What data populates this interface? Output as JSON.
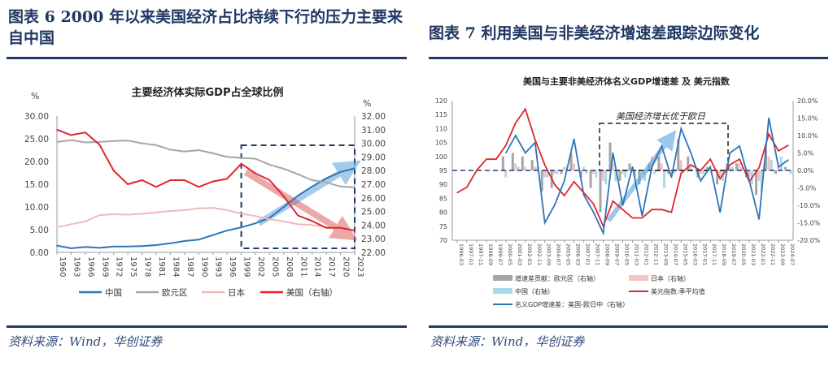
{
  "left": {
    "caption": "图表 6   2000 年以来美国经济占比持续下行的压力主要来自中国",
    "source": "资料来源：Wind，华创证券"
  },
  "right": {
    "caption": "图表 7   利用美国与非美经济增速差跟踪边际变化",
    "source": "资料来源：Wind，华创证券"
  },
  "chart_data": [
    {
      "type": "line",
      "title": "主要经济体实际GDP占全球比例",
      "ylabel": "%",
      "y2label": "%",
      "ylim": [
        0,
        30
      ],
      "y2lim": [
        22,
        32
      ],
      "yticks": [
        "0.00",
        "5.00",
        "10.00",
        "15.00",
        "20.00",
        "25.00",
        "30.00"
      ],
      "y2ticks": [
        "22.00",
        "23.00",
        "24.00",
        "25.00",
        "26.00",
        "27.00",
        "28.00",
        "29.00",
        "30.00",
        "31.00",
        "32.00"
      ],
      "x": [
        1960,
        1963,
        1966,
        1969,
        1972,
        1975,
        1978,
        1981,
        1984,
        1987,
        1990,
        1993,
        1996,
        1999,
        2002,
        2005,
        2008,
        2011,
        2014,
        2017,
        2020,
        2023
      ],
      "series": [
        {
          "name": "中国",
          "axis": "left",
          "color": "#2e75b6",
          "values": [
            1.5,
            0.9,
            1.2,
            1.0,
            1.3,
            1.3,
            1.4,
            1.6,
            2.0,
            2.5,
            2.8,
            3.8,
            4.8,
            5.5,
            6.4,
            7.6,
            10.0,
            12.5,
            14.5,
            16.3,
            17.7,
            18.5
          ]
        },
        {
          "name": "欧元区",
          "axis": "left",
          "color": "#a6a6a6",
          "values": [
            24.3,
            24.7,
            24.2,
            24.3,
            24.5,
            24.6,
            24.0,
            23.6,
            22.6,
            22.2,
            22.5,
            21.8,
            21.0,
            20.8,
            20.6,
            19.3,
            18.4,
            17.2,
            15.9,
            15.4,
            14.5,
            14.3
          ]
        },
        {
          "name": "日本",
          "axis": "left",
          "color": "#f2b8b8",
          "values": [
            5.5,
            6.2,
            6.8,
            8.2,
            8.4,
            8.3,
            8.5,
            8.8,
            9.1,
            9.3,
            9.7,
            9.8,
            9.3,
            8.5,
            8.0,
            7.3,
            6.8,
            6.2,
            6.0,
            5.6,
            5.2,
            4.8
          ]
        },
        {
          "name": "美国（右轴）",
          "axis": "right",
          "color": "#e0262b",
          "values": [
            31.0,
            30.6,
            30.8,
            29.9,
            28.0,
            27.0,
            27.3,
            26.8,
            27.3,
            27.3,
            26.8,
            27.2,
            27.4,
            28.5,
            27.8,
            27.3,
            26.1,
            24.7,
            24.3,
            23.8,
            23.8,
            23.6
          ]
        }
      ],
      "highlight_box": {
        "from": 1999,
        "to": 2023
      },
      "grid": false,
      "legend": "bottom"
    },
    {
      "type": "bar+line",
      "title": "美国与主要非美经济体名义GDP增速差 及 美元指数",
      "annotation": "美国经济增长优于欧日",
      "ylim": [
        70,
        120
      ],
      "y2lim": [
        -20,
        20
      ],
      "yticks": [
        "70",
        "75",
        "80",
        "85",
        "90",
        "95",
        "100",
        "105",
        "110",
        "115",
        "120"
      ],
      "y2ticks": [
        "-20.0%",
        "-15.0%",
        "-10.0%",
        "-5.0%",
        "0.0%",
        "5.0%",
        "10.0%",
        "15.0%",
        "20.0%"
      ],
      "x": [
        "1996-03",
        "1997-01",
        "1997-11",
        "1998-09",
        "1999-07",
        "2000-05",
        "2001-03",
        "2002-01",
        "2002-11",
        "2003-09",
        "2004-07",
        "2005-05",
        "2006-03",
        "2007-01",
        "2007-11",
        "2008-09",
        "2009-07",
        "2010-05",
        "2011-03",
        "2012-01",
        "2012-11",
        "2013-09",
        "2014-07",
        "2015-05",
        "2016-03",
        "2017-01",
        "2017-11",
        "2018-09",
        "2019-07",
        "2020-05",
        "2021-03",
        "2022-01",
        "2022-11",
        "2023-09",
        "2024-07"
      ],
      "bars": [
        {
          "name": "增速差贡献：欧元区（右轴）",
          "color": "#a6a6a6",
          "values": [
            null,
            null,
            null,
            null,
            null,
            4,
            5,
            4,
            3,
            -6,
            -5,
            -1,
            5,
            -2,
            -5,
            -12,
            8,
            -3,
            2,
            -4,
            2,
            4,
            -1,
            9,
            4,
            -2,
            1,
            -4,
            2,
            2,
            -2,
            -7,
            6,
            -1,
            1
          ]
        },
        {
          "name": "日本（右轴）",
          "color": "#f4c2c2",
          "values": [
            null,
            null,
            null,
            null,
            null,
            -2,
            2,
            1,
            1,
            -2,
            -1,
            1,
            2,
            1,
            -1,
            -3,
            2,
            -1,
            1,
            -1,
            4,
            2,
            -1,
            3,
            1,
            -1,
            0,
            -2,
            1,
            2,
            -2,
            -3,
            4,
            1,
            0
          ]
        },
        {
          "name": "中国（右轴）",
          "color": "#a9d8ea",
          "values": [
            null,
            null,
            null,
            null,
            null,
            0,
            1,
            0,
            1,
            -2,
            -1,
            1,
            0,
            -1,
            -2,
            -4,
            -3,
            -2,
            -2,
            -3,
            -1,
            -5,
            -1,
            0,
            0,
            -1,
            0,
            -3,
            1,
            1,
            -4,
            -6,
            3,
            4,
            -1
          ]
        }
      ],
      "series": [
        {
          "name": "美元指数:季平均值",
          "axis": "left",
          "color": "#e0262b",
          "values": [
            87,
            89,
            95,
            99,
            99,
            104,
            112,
            117,
            106,
            97,
            90,
            86,
            91,
            87,
            83,
            75,
            84,
            81,
            78,
            78,
            81,
            81,
            80,
            94,
            97,
            95,
            99,
            92,
            97,
            99,
            91,
            96,
            108,
            102,
            104
          ]
        },
        {
          "name": "名义GDP增速差：美国-欧日中（右轴）",
          "axis": "right",
          "color": "#2e75b6",
          "values": [
            null,
            null,
            null,
            null,
            null,
            5,
            10,
            5,
            8,
            -15,
            -10,
            -3,
            9,
            -7,
            -12,
            -18,
            5,
            -10,
            1,
            -13,
            1,
            7,
            -2,
            12,
            5,
            -3,
            1,
            -12,
            5,
            7,
            -3,
            -14,
            15,
            1,
            3
          ]
        }
      ],
      "reference_line": 95,
      "grid": false,
      "legend": "bottom"
    }
  ]
}
